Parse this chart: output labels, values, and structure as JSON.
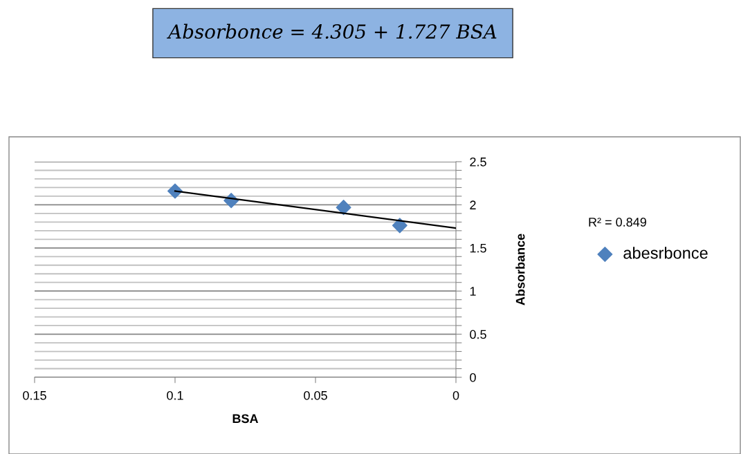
{
  "chart_data": {
    "type": "scatter",
    "title": "Absorbonce = 4.305 + 1.727 BSA",
    "xlabel": "BSA",
    "ylabel": "Absorbance",
    "x": [
      0.1,
      0.08,
      0.04,
      0.02
    ],
    "series": [
      {
        "name": "abesrbonce",
        "color": "#4f81bd",
        "values": [
          2.16,
          2.05,
          1.97,
          1.76
        ],
        "marker": "diamond"
      },
      {
        "type": "line",
        "color": "#000000",
        "x": [
          0.1,
          0
        ],
        "values": [
          2.16,
          1.73
        ],
        "marker": "none"
      }
    ],
    "annotations": [
      "R² = 0.849"
    ],
    "xlim": [
      0.15,
      0
    ],
    "xticks": [
      0.15,
      0.1,
      0.05,
      0
    ],
    "ylim": [
      0,
      2.5
    ],
    "yticks": [
      0,
      {
        "value": 0.1,
        "label": null
      },
      {
        "value": 0.2,
        "label": null
      },
      {
        "value": 0.3,
        "label": null
      },
      {
        "value": 0.4,
        "label": null
      },
      0.5,
      {
        "value": 0.6,
        "label": null
      },
      {
        "value": 0.7,
        "label": null
      },
      {
        "value": 0.8,
        "label": null
      },
      {
        "value": 0.9,
        "label": null
      },
      1,
      {
        "value": 1.1,
        "label": null
      },
      {
        "value": 1.2,
        "label": null
      },
      {
        "value": 1.3,
        "label": null
      },
      {
        "value": 1.4,
        "label": null
      },
      1.5,
      {
        "value": 1.6,
        "label": null
      },
      {
        "value": 1.7,
        "label": null
      },
      {
        "value": 1.8,
        "label": null
      },
      {
        "value": 1.9,
        "label": null
      },
      2,
      {
        "value": 2.1,
        "label": null
      },
      {
        "value": 2.2,
        "label": null
      },
      {
        "value": 2.3,
        "label": null
      },
      {
        "value": 2.4,
        "label": null
      },
      2.5
    ],
    "grid": "y",
    "legend": "right"
  }
}
